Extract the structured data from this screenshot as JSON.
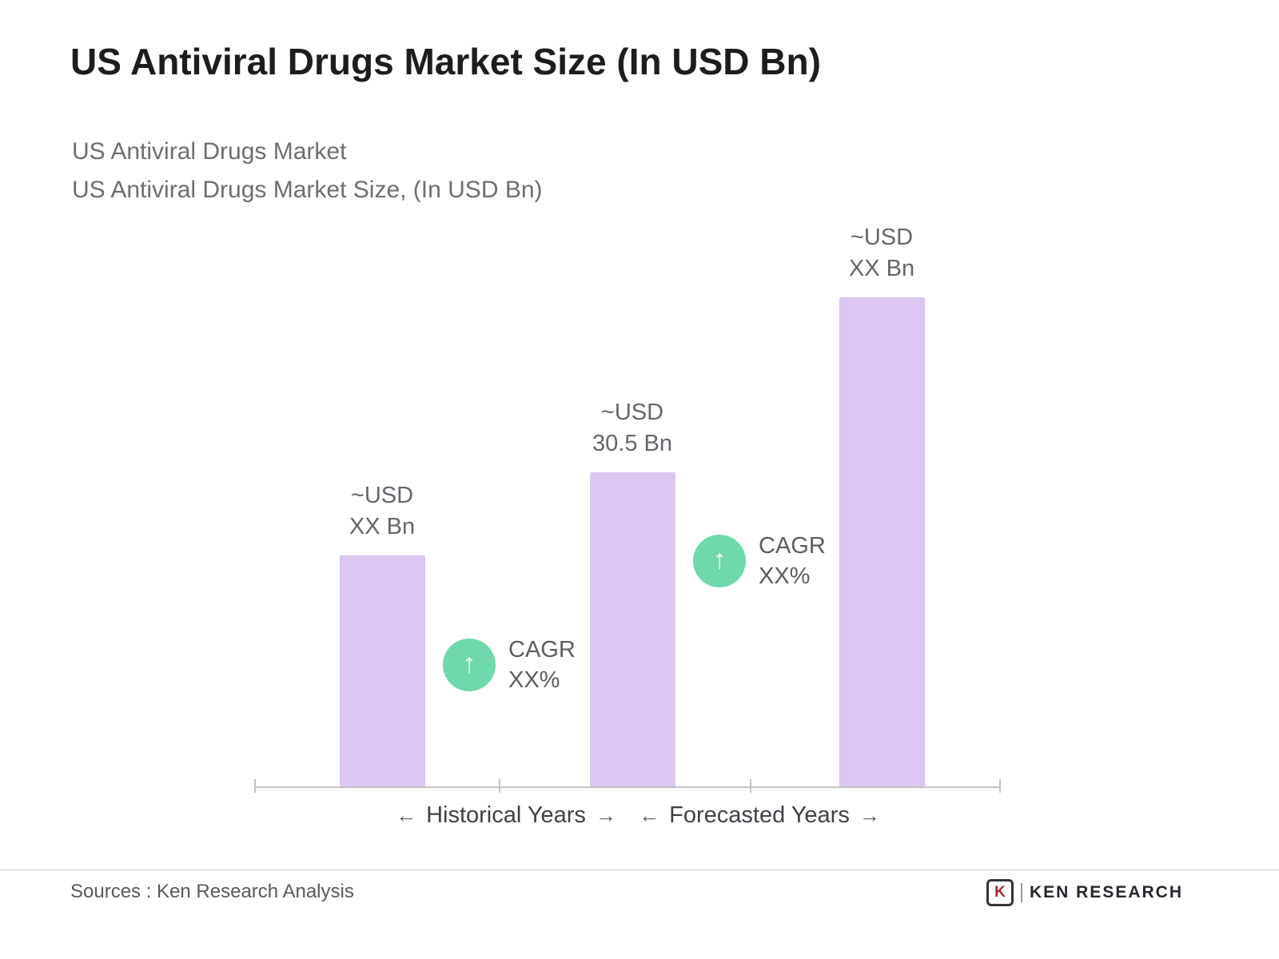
{
  "title": "US Antiviral Drugs Market Size (In USD Bn)",
  "subtitle_line1": "US Antiviral Drugs Market",
  "subtitle_line2": "US Antiviral Drugs Market Size, (In USD Bn)",
  "icons": {
    "up_arrow": "↑",
    "left_arrow": "←",
    "right_arrow": "→"
  },
  "chart_data": {
    "type": "bar",
    "title": "US Antiviral Drugs Market Size (In USD Bn)",
    "unit": "USD Bn",
    "bars": [
      {
        "label_line1": "~USD",
        "label_line2": "XX Bn",
        "value_label": "~USD XX Bn",
        "value": 22.5
      },
      {
        "label_line1": "~USD",
        "label_line2": "30.5 Bn",
        "value_label": "~USD 30.5 Bn",
        "value": 30.5
      },
      {
        "label_line1": "~USD",
        "label_line2": "XX Bn",
        "value_label": "~USD XX Bn",
        "value": 47.5
      }
    ],
    "value_note": "Only the middle bar carries a numeric label (30.5); first and last bars show XX placeholders, their numeric values are estimated from relative bar heights",
    "cagr_badges": [
      {
        "line1": "CAGR",
        "line2": "XX%"
      },
      {
        "line1": "CAGR",
        "line2": "XX%"
      }
    ],
    "axis_groups": [
      {
        "label": "Historical Years"
      },
      {
        "label": "Forecasted Years"
      }
    ],
    "bar_color": "#DCC6F2",
    "badge_color": "#6FD8AC",
    "grid": false,
    "legend": false
  },
  "footer": {
    "sources": "Sources : Ken Research Analysis",
    "logo_k": "K",
    "logo_text": "KEN RESEARCH"
  }
}
